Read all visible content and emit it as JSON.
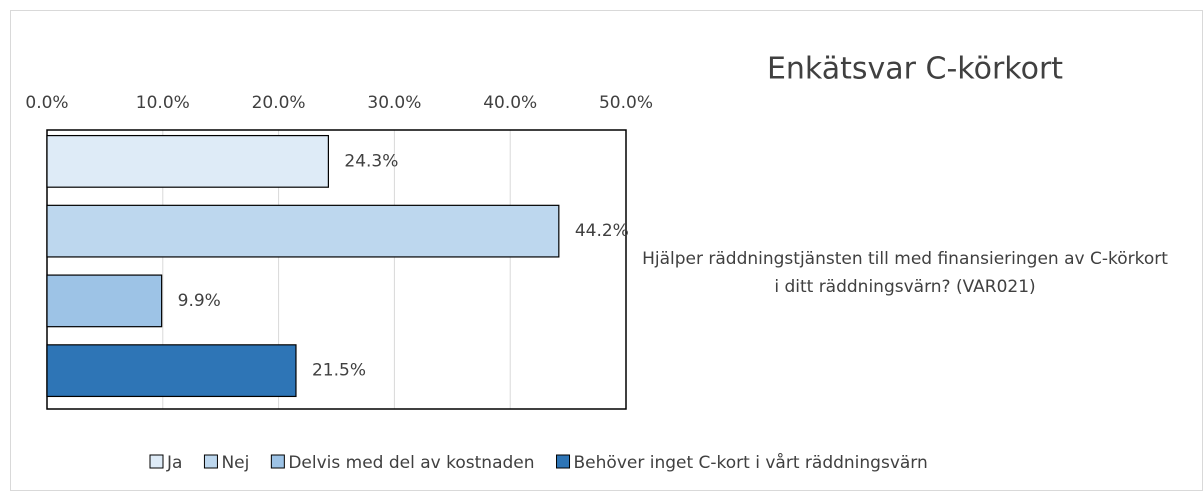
{
  "chart_data": {
    "type": "barh",
    "title": "Enkätsvar C-körkort",
    "categories": [
      "Hjälper räddningstjänsten till med finansieringen av C-körkort i ditt räddningsvärn? (VAR021)"
    ],
    "series": [
      {
        "name": "Ja",
        "color": "#deebf7",
        "values": [
          24.3
        ],
        "value_labels": [
          "24.3%"
        ]
      },
      {
        "name": "Nej",
        "color": "#bdd7ee",
        "values": [
          44.2
        ],
        "value_labels": [
          "44.2%"
        ]
      },
      {
        "name": "Delvis med del av kostnaden",
        "color": "#9dc3e6",
        "values": [
          9.9
        ],
        "value_labels": [
          "9.9%"
        ]
      },
      {
        "name": "Behöver inget C-kort i vårt räddningsvärn",
        "color": "#2e75b6",
        "values": [
          21.5
        ],
        "value_labels": [
          "21.5%"
        ]
      }
    ],
    "xlim": [
      0,
      50
    ],
    "xticks": [
      {
        "value": 0,
        "label": "0.0%"
      },
      {
        "value": 10,
        "label": "10.0%"
      },
      {
        "value": 20,
        "label": "20.0%"
      },
      {
        "value": 30,
        "label": "30.0%"
      },
      {
        "value": 40,
        "label": "40.0%"
      },
      {
        "value": 50,
        "label": "50.0%"
      }
    ],
    "grid": true,
    "legend": "bottom"
  }
}
